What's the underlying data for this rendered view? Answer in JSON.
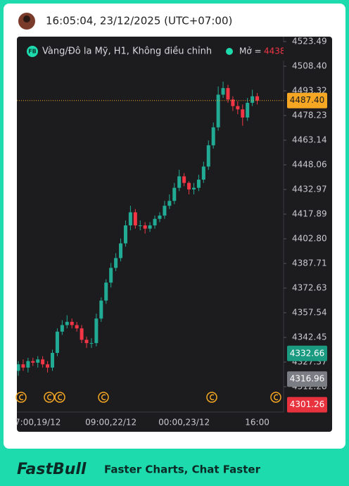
{
  "header": {
    "timestamp": "16:05:04, 23/12/2025 (UTC+07:00)"
  },
  "footer": {
    "brand": "FastBull",
    "tagline": "Faster Charts, Chat Faster"
  },
  "chart_data": {
    "type": "candlestick",
    "symbol_badge": "FB",
    "title": "Vàng/Đô la Mỹ, H1, Không điều chỉnh",
    "open_label": "Mở =",
    "open_value": 4438,
    "up_color": "#22ab94",
    "down_color": "#f23645",
    "categories": [
      null,
      null,
      null,
      null,
      "7:00,19/12",
      null,
      null,
      null,
      null,
      null,
      null,
      null,
      null,
      null,
      null,
      null,
      null,
      null,
      null,
      "09:00,22/12",
      null,
      null,
      null,
      null,
      null,
      null,
      null,
      null,
      null,
      null,
      null,
      null,
      null,
      null,
      "00:00,23/12",
      null,
      null,
      null,
      null,
      null,
      null,
      null,
      null,
      null,
      null,
      null,
      null,
      null,
      null,
      "16:00"
    ],
    "open": [
      4322,
      4326,
      4324,
      4328,
      4327,
      4329,
      4326,
      4324,
      4333,
      4346,
      4350,
      4352,
      4350,
      4348,
      4341,
      4339,
      4339,
      4354,
      4365,
      4376,
      4385,
      4391,
      4400,
      4411,
      4419,
      4411,
      4411,
      4409,
      4411,
      4415,
      4417,
      4423,
      4426,
      4434,
      4441,
      4437,
      4433,
      4434,
      4439,
      4447,
      4460,
      4471,
      4491,
      4495,
      4488,
      4484,
      4482,
      4477,
      4486,
      4490
    ],
    "high": [
      4328,
      4329,
      4330,
      4330,
      4331,
      4331,
      4328,
      4335,
      4348,
      4353,
      4356,
      4354,
      4352,
      4350,
      4343,
      4342,
      4357,
      4367,
      4378,
      4388,
      4394,
      4403,
      4414,
      4423,
      4421,
      4414,
      4413,
      4413,
      4417,
      4419,
      4426,
      4430,
      4437,
      4445,
      4443,
      4438,
      4437,
      4442,
      4450,
      4463,
      4474,
      4496,
      4499,
      4497,
      4490,
      4487,
      4485,
      4489,
      4494,
      4492
    ],
    "low": [
      4319,
      4322,
      4321,
      4325,
      4324,
      4324,
      4321,
      4322,
      4331,
      4344,
      4348,
      4348,
      4346,
      4339,
      4336,
      4336,
      4337,
      4352,
      4363,
      4373,
      4383,
      4389,
      4398,
      4408,
      4409,
      4408,
      4406,
      4407,
      4409,
      4413,
      4415,
      4421,
      4424,
      4432,
      4435,
      4430,
      4430,
      4432,
      4437,
      4445,
      4458,
      4469,
      4489,
      4486,
      4481,
      4479,
      4472,
      4475,
      4484,
      4485
    ],
    "close": [
      4326,
      4324,
      4328,
      4327,
      4329,
      4326,
      4324,
      4333,
      4346,
      4350,
      4352,
      4350,
      4348,
      4341,
      4339,
      4339,
      4354,
      4365,
      4376,
      4385,
      4391,
      4400,
      4411,
      4419,
      4411,
      4411,
      4409,
      4411,
      4415,
      4417,
      4423,
      4426,
      4434,
      4441,
      4437,
      4433,
      4434,
      4439,
      4447,
      4460,
      4471,
      4491,
      4495,
      4488,
      4484,
      4482,
      4477,
      4486,
      4490,
      4487.4
    ],
    "ylim": [
      4296.8,
      4526.5
    ],
    "yticks": [
      4523.49,
      {
        "value": 4508.4,
        "label": "4508.40"
      },
      4493.32,
      4478.23,
      4463.14,
      4448.06,
      4432.97,
      4417.89,
      {
        "value": 4402.8,
        "label": "4402.80"
      },
      4387.71,
      4372.63,
      4357.54,
      4342.45,
      4327.37,
      4312.28
    ],
    "price_labels": [
      {
        "value": 4487.4,
        "label": "4487.40",
        "color": "#f5a623"
      },
      {
        "value": 4332.66,
        "label": "4332.66",
        "color": "#1a9a80"
      },
      {
        "value": 4316.96,
        "label": "4316.96",
        "color": "#7b7d85"
      },
      {
        "value": 4301.26,
        "label": "4301.26",
        "color": "#e8333f"
      }
    ]
  }
}
